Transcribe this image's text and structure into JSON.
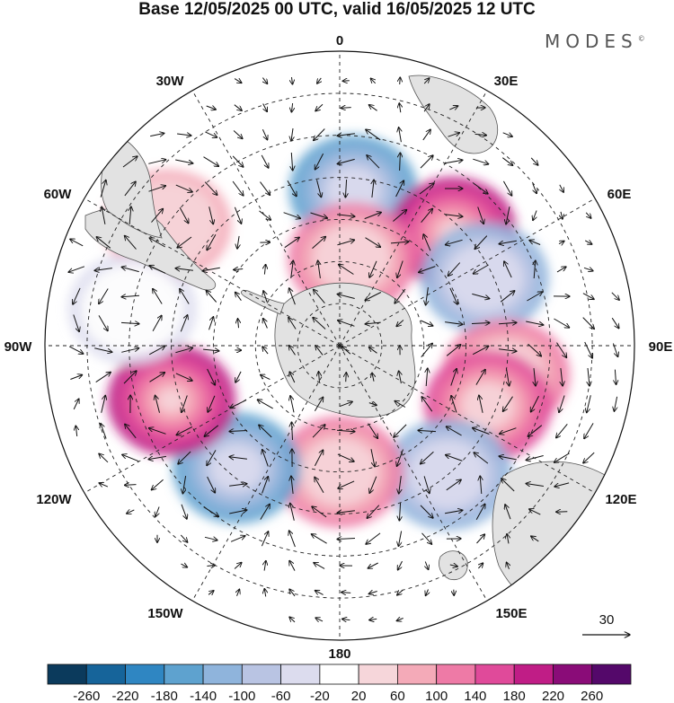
{
  "title": "Base 12/05/2025 00 UTC, valid 16/05/2025 12 UTC",
  "brand": "MODES",
  "brand_mark": "©",
  "longitude_labels": [
    "0",
    "30E",
    "60E",
    "90E",
    "120E",
    "150E",
    "180",
    "150W",
    "120W",
    "90W",
    "60W",
    "30W"
  ],
  "reference_vector_label": "30",
  "colorbar": {
    "tick_labels": [
      "-260",
      "-220",
      "-180",
      "-140",
      "-100",
      "-60",
      "-20",
      "20",
      "60",
      "100",
      "140",
      "180",
      "220",
      "260"
    ],
    "colors": [
      "#0b3a5c",
      "#16649a",
      "#2f86c2",
      "#5ea2cf",
      "#8fb4dc",
      "#b9c4e3",
      "#dcdcee",
      "#ffffff",
      "#f6d6da",
      "#f4aab8",
      "#ee7aa6",
      "#e04a9a",
      "#c01d86",
      "#8a0c78",
      "#54086a"
    ]
  },
  "chart_data": {
    "type": "heatmap",
    "projection": "south-polar-stereographic",
    "title": "Base 12/05/2025 00 UTC, valid 16/05/2025 12 UTC",
    "color_levels": [
      -260,
      -220,
      -180,
      -140,
      -100,
      -60,
      -20,
      20,
      60,
      100,
      140,
      180,
      220,
      260
    ],
    "anomaly_centers": [
      {
        "lon": 5,
        "lat": -53,
        "value": -150
      },
      {
        "lon": 45,
        "lat": -52,
        "value": 200
      },
      {
        "lon": 65,
        "lat": -52,
        "value": -110
      },
      {
        "lon": 8,
        "lat": -69,
        "value": 120
      },
      {
        "lon": 100,
        "lat": -50,
        "value": 110
      },
      {
        "lon": 112,
        "lat": -52,
        "value": 150
      },
      {
        "lon": 140,
        "lat": -50,
        "value": -130
      },
      {
        "lon": 180,
        "lat": -60,
        "value": 130
      },
      {
        "lon": -140,
        "lat": -52,
        "value": -150
      },
      {
        "lon": -108,
        "lat": -48,
        "value": 200
      },
      {
        "lon": -55,
        "lat": -40,
        "value": 90
      },
      {
        "lon": -80,
        "lat": -40,
        "value": -60
      }
    ],
    "reference_vector": 30
  }
}
